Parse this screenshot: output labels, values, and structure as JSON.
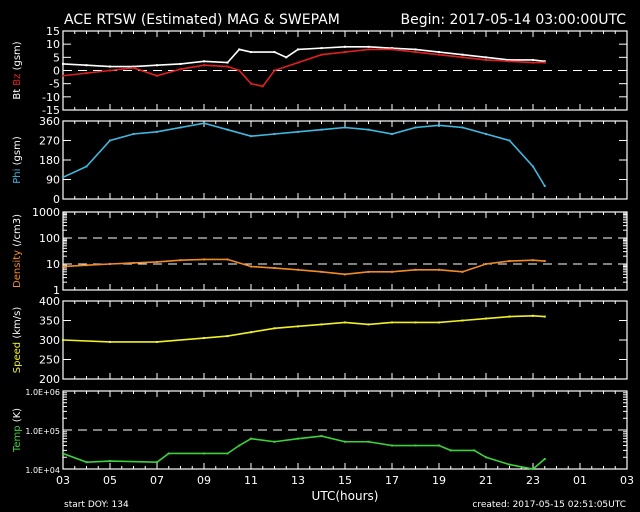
{
  "title": "ACE RTSW (Estimated) MAG & SWEPAM",
  "begin": "Begin: 2017-05-14 03:00:00UTC",
  "footer": {
    "start_doy": "start DOY: 134",
    "created": "created: 2017-05-15 02:51:05UTC"
  },
  "chart_data": {
    "type": "scatter",
    "xlabel": "UTC(hours)",
    "x_tick_labels": [
      "03",
      "05",
      "07",
      "09",
      "11",
      "13",
      "15",
      "17",
      "19",
      "21",
      "23",
      "01",
      "03"
    ],
    "xlim_hours_since_start": [
      0,
      24
    ],
    "panels": [
      {
        "id": "mag",
        "ylabel_parts": [
          {
            "text": "Bt",
            "color": "#ffffff"
          },
          {
            "text": "Bz",
            "color": "#e02020"
          },
          {
            "text": "(gsm)",
            "color": "#ffffff"
          }
        ],
        "scale": "linear",
        "ylim": [
          -15,
          15
        ],
        "tick_labels": [
          "15",
          "10",
          "5",
          "0",
          "-5",
          "-10",
          "-15"
        ],
        "tick_values": [
          15,
          10,
          5,
          0,
          -5,
          -10,
          -15
        ],
        "dashed": [
          0
        ],
        "series": [
          {
            "name": "Bt",
            "color": "#ffffff",
            "x": [
              0,
              1,
              2,
              3,
              4,
              5,
              6,
              7,
              7.5,
              8,
              9,
              9.5,
              10,
              11,
              12,
              13,
              14,
              15,
              16,
              17,
              18,
              19,
              20,
              20.5
            ],
            "y": [
              2.5,
              2,
              1.5,
              1.5,
              2,
              2.5,
              3.5,
              3,
              8,
              7,
              7,
              5,
              8,
              8.5,
              9,
              9,
              8.5,
              8,
              7,
              6,
              5,
              4,
              4,
              3.5
            ]
          },
          {
            "name": "Bz",
            "color": "#e02020",
            "x": [
              0,
              1,
              2,
              3,
              4,
              5,
              6,
              7,
              7.5,
              8,
              8.5,
              9,
              10,
              11,
              12,
              13,
              14,
              15,
              16,
              17,
              18,
              19,
              20,
              20.5
            ],
            "y": [
              -2,
              -1,
              0,
              1,
              -2,
              0.5,
              2,
              1.5,
              0,
              -5,
              -6,
              0,
              3,
              6,
              7,
              8,
              8,
              7,
              6,
              5,
              4,
              3.5,
              3,
              3
            ]
          }
        ]
      },
      {
        "id": "phi",
        "ylabel_parts": [
          {
            "text": "Phi",
            "color": "#40b8e0"
          },
          {
            "text": "(gsm)",
            "color": "#ffffff"
          }
        ],
        "scale": "linear",
        "ylim": [
          0,
          360
        ],
        "tick_labels": [
          "360",
          "270",
          "180",
          "90",
          "0"
        ],
        "tick_values": [
          360,
          270,
          180,
          90,
          0
        ],
        "dashed": [],
        "series": [
          {
            "name": "Phi",
            "color": "#40b8e0",
            "x": [
              0,
              1,
              2,
              3,
              4,
              5,
              6,
              7,
              8,
              9,
              10,
              11,
              12,
              13,
              14,
              15,
              16,
              17,
              18,
              19,
              20,
              20.5
            ],
            "y": [
              100,
              150,
              270,
              300,
              310,
              330,
              350,
              320,
              290,
              300,
              310,
              320,
              330,
              320,
              300,
              330,
              340,
              330,
              300,
              270,
              150,
              60
            ]
          }
        ]
      },
      {
        "id": "density",
        "ylabel_parts": [
          {
            "text": "Density",
            "color": "#f08c28"
          },
          {
            "text": "(/cm3)",
            "color": "#ffffff"
          }
        ],
        "scale": "log",
        "ylim": [
          1,
          1000
        ],
        "tick_labels": [
          "1000",
          "100",
          "10",
          "1"
        ],
        "tick_values": [
          1000,
          100,
          10,
          1
        ],
        "dashed": [
          10,
          100
        ],
        "series": [
          {
            "name": "Density",
            "color": "#f08c28",
            "x": [
              0,
              1,
              2,
              3,
              4,
              5,
              6,
              7,
              8,
              9,
              10,
              11,
              12,
              13,
              14,
              15,
              16,
              17,
              18,
              19,
              20,
              20.5
            ],
            "y": [
              8,
              9,
              10,
              11,
              12,
              14,
              15,
              15,
              8,
              7,
              6,
              5,
              4,
              5,
              5,
              6,
              6,
              5,
              10,
              13,
              14,
              13
            ]
          }
        ]
      },
      {
        "id": "speed",
        "ylabel_parts": [
          {
            "text": "Speed",
            "color": "#f0f028"
          },
          {
            "text": "(km/s)",
            "color": "#ffffff"
          }
        ],
        "scale": "linear",
        "ylim": [
          200,
          400
        ],
        "tick_labels": [
          "400",
          "350",
          "300",
          "250",
          "200"
        ],
        "tick_values": [
          400,
          350,
          300,
          250,
          200
        ],
        "dashed": [],
        "series": [
          {
            "name": "Speed",
            "color": "#f0f028",
            "x": [
              0,
              2,
              4,
              6,
              7,
              8,
              9,
              10,
              11,
              12,
              13,
              14,
              15,
              16,
              17,
              18,
              19,
              20,
              20.5
            ],
            "y": [
              300,
              295,
              295,
              305,
              310,
              320,
              330,
              335,
              340,
              345,
              340,
              345,
              345,
              345,
              350,
              355,
              360,
              362,
              360
            ]
          }
        ]
      },
      {
        "id": "temp",
        "ylabel_parts": [
          {
            "text": "Temp",
            "color": "#3cd23c"
          },
          {
            "text": "(K)",
            "color": "#ffffff"
          }
        ],
        "scale": "log",
        "ylim": [
          10000,
          1000000
        ],
        "tick_labels": [
          "1.0E+06",
          "1.0E+05",
          "1.0E+04"
        ],
        "tick_values": [
          1000000,
          100000,
          10000
        ],
        "dashed": [
          100000
        ],
        "series": [
          {
            "name": "Temp",
            "color": "#3cd23c",
            "x": [
              0,
              1,
              2,
              4,
              4.5,
              6,
              7,
              7.5,
              8,
              9,
              10,
              11,
              12,
              13,
              14,
              15,
              16,
              16.5,
              17.5,
              18,
              19,
              20,
              20.5
            ],
            "y": [
              25000,
              15000,
              16000,
              15000,
              25000,
              25000,
              25000,
              40000,
              60000,
              50000,
              60000,
              70000,
              50000,
              50000,
              40000,
              40000,
              40000,
              30000,
              30000,
              20000,
              13000,
              10000,
              18000
            ]
          }
        ]
      }
    ]
  }
}
